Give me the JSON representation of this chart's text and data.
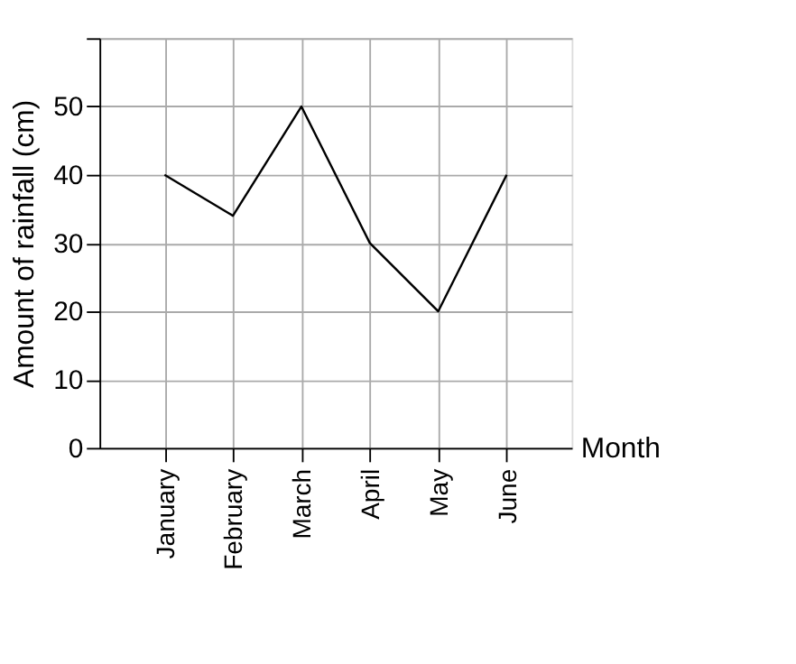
{
  "chart_data": {
    "type": "line",
    "xlabel": "Month",
    "ylabel": "Amount of rainfall (cm)",
    "categories": [
      "January",
      "February",
      "March",
      "April",
      "May",
      "June"
    ],
    "values": [
      40,
      34,
      50,
      30,
      20,
      40
    ],
    "color": "#000000",
    "ylim": [
      0,
      60
    ],
    "yticks": [
      0,
      10,
      20,
      30,
      40,
      50,
      {
        "value": 60,
        "label": null
      }
    ],
    "grid": true,
    "marker": "none",
    "line_style": "solid"
  }
}
